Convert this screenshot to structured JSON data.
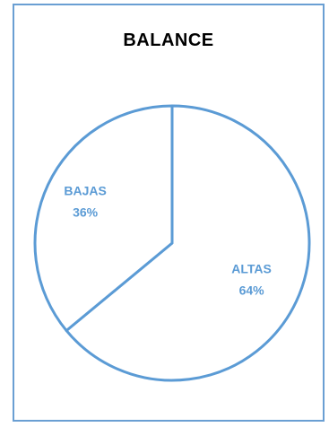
{
  "chart_data": {
    "type": "pie",
    "title": "BALANCE",
    "slices": [
      {
        "label": "ALTAS",
        "value": 64,
        "display": "64%"
      },
      {
        "label": "BAJAS",
        "value": 36,
        "display": "36%"
      }
    ],
    "colors": {
      "stroke": "#5b9bd5",
      "fill": "#ffffff",
      "label": "#5b9bd5",
      "border": "#6a9fd3"
    }
  }
}
